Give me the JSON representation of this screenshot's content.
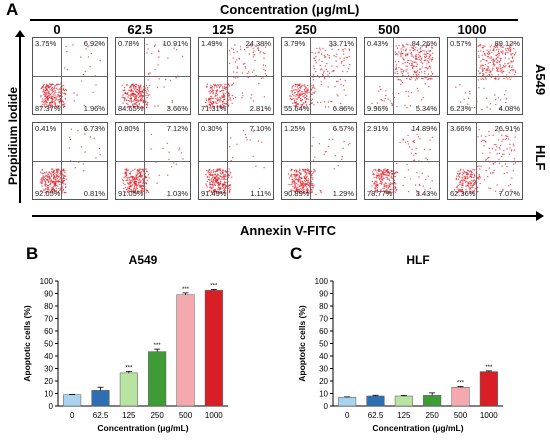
{
  "panel_a": {
    "letter": "A",
    "concentration_title": "Concentration (μg/mL)",
    "concentrations": [
      "0",
      "62.5",
      "125",
      "250",
      "500",
      "1000"
    ],
    "y_axis_label": "Propidium Iodide",
    "x_axis_label": "Annexin V-FITC",
    "rows": [
      {
        "label": "A549",
        "cells": [
          {
            "tl": "3.75%",
            "tr": "6.92%",
            "bl": "87.37%",
            "br": "1.96%"
          },
          {
            "tl": "0.78%",
            "tr": "10.91%",
            "bl": "84.65%",
            "br": "3.66%"
          },
          {
            "tl": "1.49%",
            "tr": "24.38%",
            "bl": "71.31%",
            "br": "2.81%"
          },
          {
            "tl": "3.79%",
            "tr": "33.71%",
            "bl": "55.64%",
            "br": "6.86%"
          },
          {
            "tl": "0.43%",
            "tr": "84.26%",
            "bl": "9.96%",
            "br": "5.34%"
          },
          {
            "tl": "0.57%",
            "tr": "89.12%",
            "bl": "6.23%",
            "br": "4.08%"
          }
        ]
      },
      {
        "label": "HLF",
        "cells": [
          {
            "tl": "0.41%",
            "tr": "6.73%",
            "bl": "92.05%",
            "br": "0.81%"
          },
          {
            "tl": "0.80%",
            "tr": "7.12%",
            "bl": "91.05%",
            "br": "1.03%"
          },
          {
            "tl": "0.30%",
            "tr": "7.10%",
            "bl": "91.49%",
            "br": "1.11%"
          },
          {
            "tl": "1.25%",
            "tr": "6.57%",
            "bl": "90.89%",
            "br": "1.29%"
          },
          {
            "tl": "2.91%",
            "tr": "14.89%",
            "bl": "78.77%",
            "br": "3.43%"
          },
          {
            "tl": "3.66%",
            "tr": "26.91%",
            "bl": "62.36%",
            "br": "7.07%"
          }
        ]
      }
    ]
  },
  "chart_data": [
    {
      "panel": "B",
      "type": "bar",
      "title": "A549",
      "categories": [
        "0",
        "62.5",
        "125",
        "250",
        "500",
        "1000"
      ],
      "values": [
        9,
        12.5,
        26.5,
        43.5,
        89,
        92.5
      ],
      "errors": [
        0.3,
        2.5,
        1.2,
        2.0,
        1.5,
        0.8
      ],
      "significance": [
        "",
        "",
        "***",
        "***",
        "***",
        "***"
      ],
      "colors": [
        "#a9d3ee",
        "#2e6fb4",
        "#b8e3a1",
        "#3f9b35",
        "#f3a9ad",
        "#d81f26"
      ],
      "xlabel": "Concentration (μg/mL)",
      "ylabel": "Apoptotic cells (%)",
      "ylim": [
        0,
        100
      ],
      "yticks": [
        "0",
        "10",
        "20",
        "30",
        "40",
        "50",
        "60",
        "70",
        "80",
        "90",
        "100"
      ]
    },
    {
      "panel": "C",
      "type": "bar",
      "title": "HLF",
      "categories": [
        "0",
        "62.5",
        "125",
        "250",
        "500",
        "1000"
      ],
      "values": [
        7,
        8,
        8,
        8.5,
        15,
        27.5
      ],
      "errors": [
        0.3,
        0.6,
        0.5,
        2.0,
        0.6,
        0.6
      ],
      "significance": [
        "",
        "",
        "",
        "",
        "***",
        "***"
      ],
      "colors": [
        "#a9d3ee",
        "#2e6fb4",
        "#b8e3a1",
        "#3f9b35",
        "#f3a9ad",
        "#d81f26"
      ],
      "xlabel": "Concentration (μg/mL)",
      "ylabel": "Apoptotic cells (%)",
      "ylim": [
        0,
        100
      ],
      "yticks": [
        "0",
        "10",
        "20",
        "30",
        "40",
        "50",
        "60",
        "70",
        "80",
        "90",
        "100"
      ]
    }
  ]
}
